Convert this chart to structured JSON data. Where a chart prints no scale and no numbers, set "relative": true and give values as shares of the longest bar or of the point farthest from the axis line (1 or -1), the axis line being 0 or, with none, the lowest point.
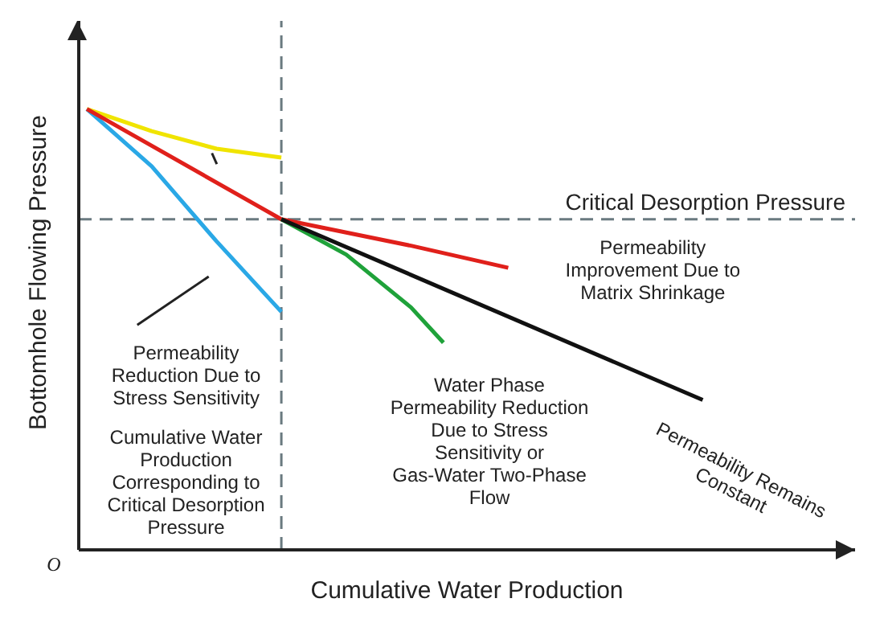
{
  "chart_data": {
    "type": "line",
    "relative": true,
    "xlabel": "Cumulative Water Production",
    "ylabel": "Bottomhole Flowing Pressure",
    "marker": "none",
    "line_style": "solid",
    "grid": false,
    "legend": false,
    "categories": [
      null,
      null,
      null,
      null,
      null,
      null,
      null,
      null,
      null,
      null,
      null,
      null,
      null,
      null,
      null,
      null,
      null,
      null,
      null,
      null
    ],
    "series": [
      {
        "color": "#f0e400",
        "values": [
          1,
          null,
          0.95,
          null,
          0.91,
          null,
          0.89,
          null,
          null,
          null,
          null,
          null,
          null,
          null,
          null,
          null,
          null,
          null,
          null,
          null
        ]
      },
      {
        "color": "#2aa8e6",
        "values": [
          1,
          null,
          0.87,
          null,
          0.7,
          null,
          0.54,
          null,
          null,
          null,
          null,
          null,
          null,
          null,
          null,
          null,
          null,
          null,
          null,
          null
        ]
      },
      {
        "color": "#e0201b",
        "values": [
          1,
          null,
          null,
          null,
          null,
          null,
          0.75,
          null,
          null,
          null,
          0.69,
          null,
          null,
          0.64,
          null,
          null,
          null,
          null,
          null,
          null
        ]
      },
      {
        "color": "#1fa23a",
        "values": [
          null,
          null,
          null,
          null,
          null,
          null,
          0.75,
          null,
          0.67,
          null,
          0.55,
          0.47,
          null,
          null,
          null,
          null,
          null,
          null,
          null,
          null
        ]
      },
      {
        "color": "#111111",
        "values": [
          null,
          null,
          null,
          null,
          null,
          null,
          0.75,
          null,
          null,
          null,
          null,
          null,
          null,
          null,
          null,
          null,
          null,
          null,
          null,
          0.34
        ]
      }
    ],
    "ref_lines": [
      {
        "axis": "y",
        "value": 0.75,
        "label": "Critical Desorption Pressure",
        "color": "#6a7a80",
        "line_style": "dashed"
      }
    ],
    "annotations": [
      "O",
      "Permeability Reduction Due to Stress Sensitivity",
      "Cumulative Water Production Corresponding to Critical Desorption Pressure",
      "Permeability Improvement Due to Matrix Shrinkage",
      "Water Phase Permeability Reduction Due to Stress Sensitivity or Gas-Water Two-Phase Flow",
      "Permeability Remains Constant"
    ]
  }
}
